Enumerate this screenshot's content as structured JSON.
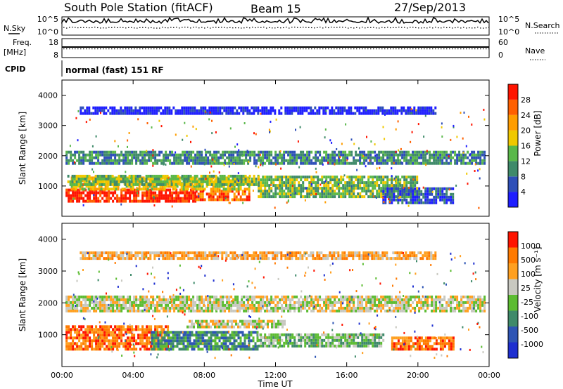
{
  "header": {
    "station": "South Pole Station (fitACF)",
    "beam": "Beam 15",
    "date": "27/Sep/2013"
  },
  "left_labels": {
    "nsky": "N.Sky",
    "freq_line1": "Freq.",
    "freq_line2": "[MHz]",
    "cpid": "CPID"
  },
  "right_labels": {
    "nsearch": "N.Search",
    "nave": "Nave"
  },
  "small_axes": {
    "noise_left": [
      "10^5",
      "10^0"
    ],
    "noise_right": [
      "10^5",
      "10^0"
    ],
    "freq_left": [
      "18",
      "8"
    ],
    "freq_right": [
      "60",
      "0"
    ]
  },
  "cpid_text": "normal (fast) 151 RF",
  "xaxis": {
    "label": "Time UT",
    "ticks": [
      "00:00",
      "04:00",
      "08:00",
      "12:00",
      "16:00",
      "20:00",
      "00:00"
    ]
  },
  "colors": {
    "power": [
      "#1e1eff",
      "#2e4fb8",
      "#3f8a6a",
      "#5ab84a",
      "#f0c800",
      "#ff9d00",
      "#ff6000",
      "#ff1400"
    ],
    "velocity": [
      "#1e2fd0",
      "#2e55b5",
      "#3f8a6a",
      "#5cbc32",
      "#c8c8c0",
      "#ffa020",
      "#ff7a00",
      "#ff1400"
    ]
  },
  "chart_data": [
    {
      "type": "heatmap",
      "title": "Power",
      "xlabel": "Time UT",
      "ylabel": "Slant Range [km]",
      "xlim": [
        0,
        24
      ],
      "ylim": [
        0,
        4500
      ],
      "yticks": [
        1000,
        2000,
        3000,
        4000
      ],
      "colorbar_label": "Power [dB]",
      "colorbar_ticks": [
        "28",
        "24",
        "20",
        "16",
        "12",
        "8",
        "4"
      ],
      "bands": [
        {
          "t0": 0.2,
          "t1": 7.5,
          "r0": 450,
          "r1": 900,
          "level": 7
        },
        {
          "t0": 7.5,
          "t1": 10.5,
          "r0": 500,
          "r1": 850,
          "level": 6
        },
        {
          "t0": 0.5,
          "t1": 10.5,
          "r0": 850,
          "r1": 1300,
          "level": 4
        },
        {
          "t0": 0.3,
          "t1": 11.0,
          "r0": 1000,
          "r1": 1300,
          "level": 3
        },
        {
          "t0": 11.0,
          "t1": 20.0,
          "r0": 600,
          "r1": 1300,
          "level": 3
        },
        {
          "t0": 18.0,
          "t1": 22.0,
          "r0": 400,
          "r1": 900,
          "level": 1
        },
        {
          "t0": 0.2,
          "t1": 23.8,
          "r0": 1700,
          "r1": 2150,
          "level": 2
        },
        {
          "t0": 1.0,
          "t1": 21.0,
          "r0": 3350,
          "r1": 3600,
          "level": 0
        }
      ]
    },
    {
      "type": "heatmap",
      "title": "Velocity",
      "xlabel": "Time UT",
      "ylabel": "Slant Range [km]",
      "xlim": [
        0,
        24
      ],
      "ylim": [
        0,
        4500
      ],
      "yticks": [
        1000,
        2000,
        3000,
        4000
      ],
      "colorbar_label": "Velocity [m s⁻¹]",
      "colorbar_ticks": [
        "1000",
        "500",
        "100",
        "25",
        "-25",
        "-100",
        "-500",
        "-1000"
      ],
      "bands": [
        {
          "t0": 0.2,
          "t1": 6.0,
          "r0": 500,
          "r1": 1250,
          "level": 6
        },
        {
          "t0": 5.0,
          "t1": 11.0,
          "r0": 500,
          "r1": 1100,
          "level": 2
        },
        {
          "t0": 7.0,
          "t1": 12.5,
          "r0": 1200,
          "r1": 1450,
          "level": 4
        },
        {
          "t0": 11.0,
          "t1": 18.0,
          "r0": 600,
          "r1": 1000,
          "level": 3
        },
        {
          "t0": 18.5,
          "t1": 22.0,
          "r0": 500,
          "r1": 900,
          "level": 6
        },
        {
          "t0": 0.2,
          "t1": 23.8,
          "r0": 1700,
          "r1": 2150,
          "level": 4
        },
        {
          "t0": 1.0,
          "t1": 21.0,
          "r0": 3350,
          "r1": 3600,
          "level": 5
        }
      ]
    }
  ]
}
